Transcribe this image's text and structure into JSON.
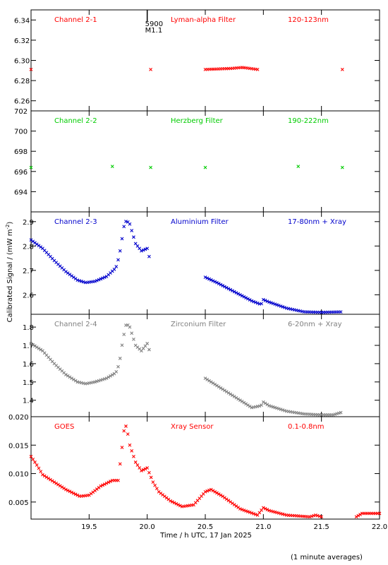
{
  "chart_data": {
    "type": "scatter",
    "x_axis": {
      "label": "Time / h UTC, 17 Jan 2025",
      "range": [
        19.0,
        22.0
      ],
      "ticks": [
        19.5,
        20.0,
        20.5,
        21.0,
        21.5,
        22.0
      ],
      "tick_labels": [
        "19.5",
        "20.0",
        "20.5",
        "21.0",
        "21.5",
        "22.0"
      ]
    },
    "y_axis_label": "Calibrated Signal / (mW m",
    "y_axis_label_sup": "-2",
    "y_axis_label_end": ")",
    "footnote": "(1 minute averages)",
    "annotation": {
      "x": 20.0,
      "line1": "5900",
      "line2": "M1.1"
    },
    "panels": [
      {
        "channel": "Channel 2-1",
        "filter": "Lyman-alpha Filter",
        "band": "120-123nm",
        "color": "#ff0000",
        "ylim": [
          6.25,
          6.35
        ],
        "yticks": [
          6.26,
          6.28,
          6.3,
          6.32,
          6.34
        ],
        "ytick_labels": [
          "6.26",
          "6.28",
          "6.30",
          "6.32",
          "6.34"
        ],
        "keypoints": [
          [
            19.0,
            6.291
          ],
          [
            20.03,
            6.291
          ],
          [
            20.5,
            6.291
          ],
          [
            20.72,
            6.292
          ],
          [
            20.82,
            6.293
          ],
          [
            20.95,
            6.291
          ],
          [
            21.68,
            6.291
          ]
        ]
      },
      {
        "channel": "Channel 2-2",
        "filter": "Herzberg Filter",
        "band": "190-222nm",
        "color": "#00cc00",
        "ylim": [
          692.0,
          702.0
        ],
        "yticks": [
          694,
          696,
          698,
          700,
          702
        ],
        "ytick_labels": [
          "694",
          "696",
          "698",
          "700",
          "702"
        ],
        "keypoints": [
          [
            19.0,
            696.4
          ],
          [
            19.7,
            696.5
          ],
          [
            20.03,
            696.4
          ],
          [
            20.5,
            696.4
          ],
          [
            21.3,
            696.5
          ],
          [
            21.68,
            696.4
          ]
        ]
      },
      {
        "channel": "Channel 2-3",
        "filter": "Aluminium Filter",
        "band": "17-80nm + Xray",
        "color": "#0000cc",
        "ylim": [
          2.52,
          2.94
        ],
        "yticks": [
          2.6,
          2.7,
          2.8,
          2.9
        ],
        "ytick_labels": [
          "2.6",
          "2.7",
          "2.8",
          "2.9"
        ],
        "keypoints": [
          [
            19.0,
            2.825
          ],
          [
            19.1,
            2.79
          ],
          [
            19.2,
            2.74
          ],
          [
            19.3,
            2.695
          ],
          [
            19.4,
            2.66
          ],
          [
            19.47,
            2.65
          ],
          [
            19.55,
            2.655
          ],
          [
            19.65,
            2.675
          ],
          [
            19.73,
            2.71
          ],
          [
            19.76,
            2.76
          ],
          [
            19.8,
            2.88
          ],
          [
            19.82,
            2.905
          ],
          [
            19.85,
            2.89
          ],
          [
            19.9,
            2.81
          ],
          [
            19.95,
            2.78
          ],
          [
            20.0,
            2.79
          ],
          [
            20.03,
            2.73
          ],
          [
            20.5,
            2.672
          ],
          [
            20.6,
            2.65
          ],
          [
            20.7,
            2.625
          ],
          [
            20.9,
            2.575
          ],
          [
            20.98,
            2.56
          ],
          [
            21.0,
            2.58
          ],
          [
            21.05,
            2.57
          ],
          [
            21.2,
            2.545
          ],
          [
            21.35,
            2.53
          ],
          [
            21.5,
            2.528
          ],
          [
            21.68,
            2.53
          ]
        ]
      },
      {
        "channel": "Channel 2-4",
        "filter": "Zirconium Filter",
        "band": "6-20nm + Xray",
        "color": "#808080",
        "ylim": [
          1.31,
          1.87
        ],
        "yticks": [
          1.4,
          1.5,
          1.6,
          1.7,
          1.8
        ],
        "ytick_labels": [
          "1.4",
          "1.5",
          "1.6",
          "1.7",
          "1.8"
        ],
        "keypoints": [
          [
            19.0,
            1.71
          ],
          [
            19.1,
            1.67
          ],
          [
            19.2,
            1.6
          ],
          [
            19.3,
            1.54
          ],
          [
            19.4,
            1.5
          ],
          [
            19.47,
            1.49
          ],
          [
            19.55,
            1.5
          ],
          [
            19.65,
            1.52
          ],
          [
            19.73,
            1.55
          ],
          [
            19.76,
            1.6
          ],
          [
            19.79,
            1.73
          ],
          [
            19.82,
            1.82
          ],
          [
            19.85,
            1.8
          ],
          [
            19.9,
            1.7
          ],
          [
            19.95,
            1.67
          ],
          [
            20.0,
            1.71
          ],
          [
            20.03,
            1.65
          ],
          [
            20.5,
            1.52
          ],
          [
            20.6,
            1.48
          ],
          [
            20.7,
            1.44
          ],
          [
            20.9,
            1.36
          ],
          [
            20.98,
            1.37
          ],
          [
            21.0,
            1.39
          ],
          [
            21.05,
            1.37
          ],
          [
            21.2,
            1.34
          ],
          [
            21.35,
            1.325
          ],
          [
            21.5,
            1.32
          ],
          [
            21.6,
            1.32
          ],
          [
            21.68,
            1.335
          ]
        ]
      },
      {
        "channel": "GOES",
        "filter": "Xray Sensor",
        "band": "0.1-0.8nm",
        "color": "#ff0000",
        "ylim": [
          0.002,
          0.02
        ],
        "yticks": [
          0.005,
          0.01,
          0.015,
          0.02
        ],
        "ytick_labels": [
          "0.005",
          "0.010",
          "0.015",
          "0.020"
        ],
        "keypoints": [
          [
            19.0,
            0.013
          ],
          [
            19.05,
            0.0115
          ],
          [
            19.1,
            0.0098
          ],
          [
            19.2,
            0.0085
          ],
          [
            19.3,
            0.0072
          ],
          [
            19.42,
            0.006
          ],
          [
            19.5,
            0.0062
          ],
          [
            19.6,
            0.0078
          ],
          [
            19.7,
            0.0088
          ],
          [
            19.75,
            0.0088
          ],
          [
            19.8,
            0.0175
          ],
          [
            19.82,
            0.0185
          ],
          [
            19.85,
            0.015
          ],
          [
            19.9,
            0.012
          ],
          [
            19.95,
            0.0105
          ],
          [
            20.0,
            0.011
          ],
          [
            20.05,
            0.0085
          ],
          [
            20.1,
            0.0068
          ],
          [
            20.2,
            0.0052
          ],
          [
            20.3,
            0.0042
          ],
          [
            20.4,
            0.0045
          ],
          [
            20.5,
            0.0068
          ],
          [
            20.55,
            0.0072
          ],
          [
            20.65,
            0.006
          ],
          [
            20.8,
            0.0038
          ],
          [
            20.95,
            0.0027
          ],
          [
            21.0,
            0.004
          ],
          [
            21.05,
            0.0035
          ],
          [
            21.2,
            0.0027
          ],
          [
            21.4,
            0.0024
          ],
          [
            21.45,
            0.0027
          ],
          [
            21.5,
            0.0024
          ],
          [
            21.8,
            0.0024
          ],
          [
            21.85,
            0.003
          ],
          [
            22.0,
            0.003
          ]
        ]
      }
    ]
  }
}
